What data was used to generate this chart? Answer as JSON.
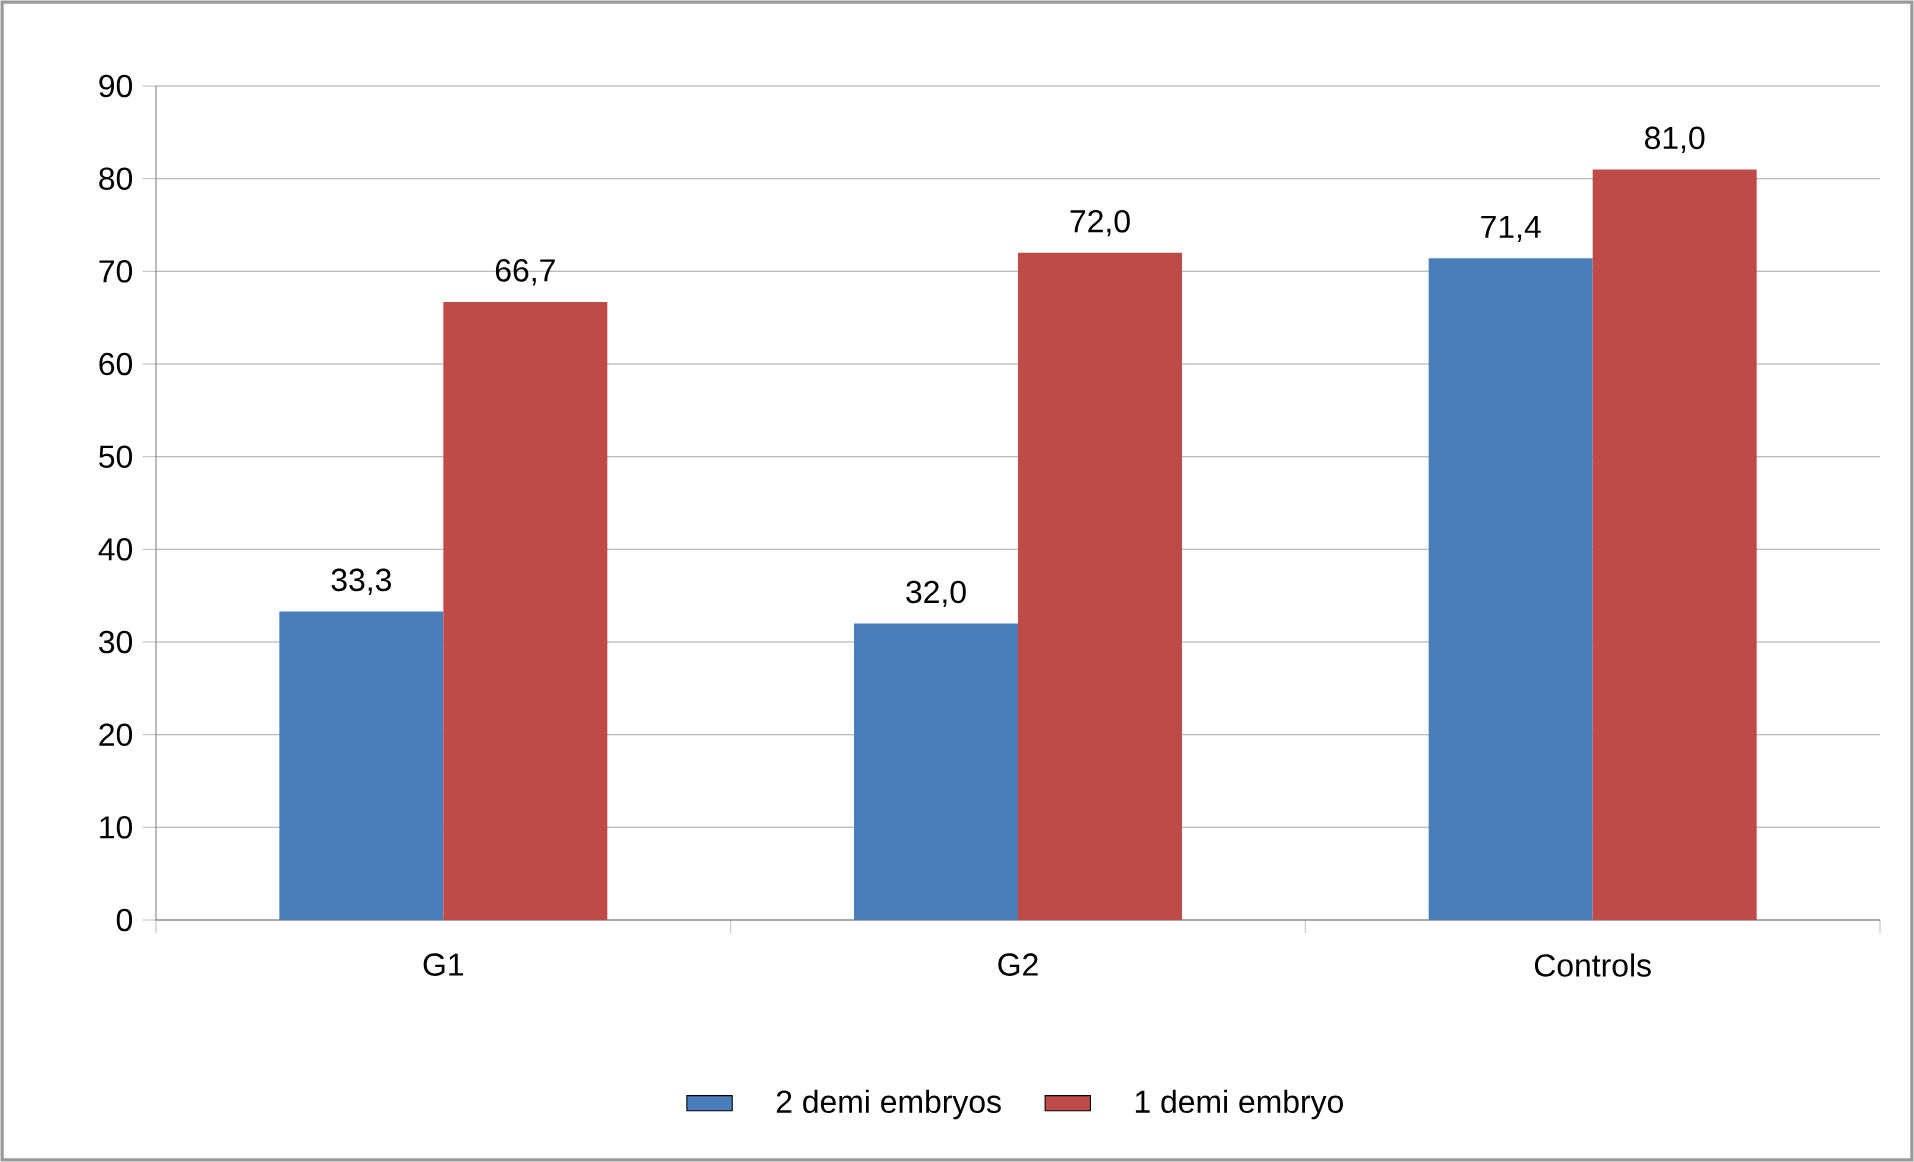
{
  "chart_data": {
    "type": "bar",
    "categories": [
      "G1",
      "G2",
      "Controls"
    ],
    "series": [
      {
        "name": "2 demi embryos",
        "color": "#4a7ebb",
        "values": [
          33.3,
          32.0,
          71.4
        ],
        "value_labels": [
          "33,3",
          "32,0",
          "71,4"
        ]
      },
      {
        "name": "1 demi embryo",
        "color": "#be4b48",
        "values": [
          66.7,
          72.0,
          81.0
        ],
        "value_labels": [
          "66,7",
          "72,0",
          "81,0"
        ]
      }
    ],
    "ylim": [
      0,
      90
    ],
    "yticks": [
      0,
      10,
      20,
      30,
      40,
      50,
      60,
      70,
      80,
      90
    ],
    "grid": "y",
    "legend": "bottom"
  }
}
